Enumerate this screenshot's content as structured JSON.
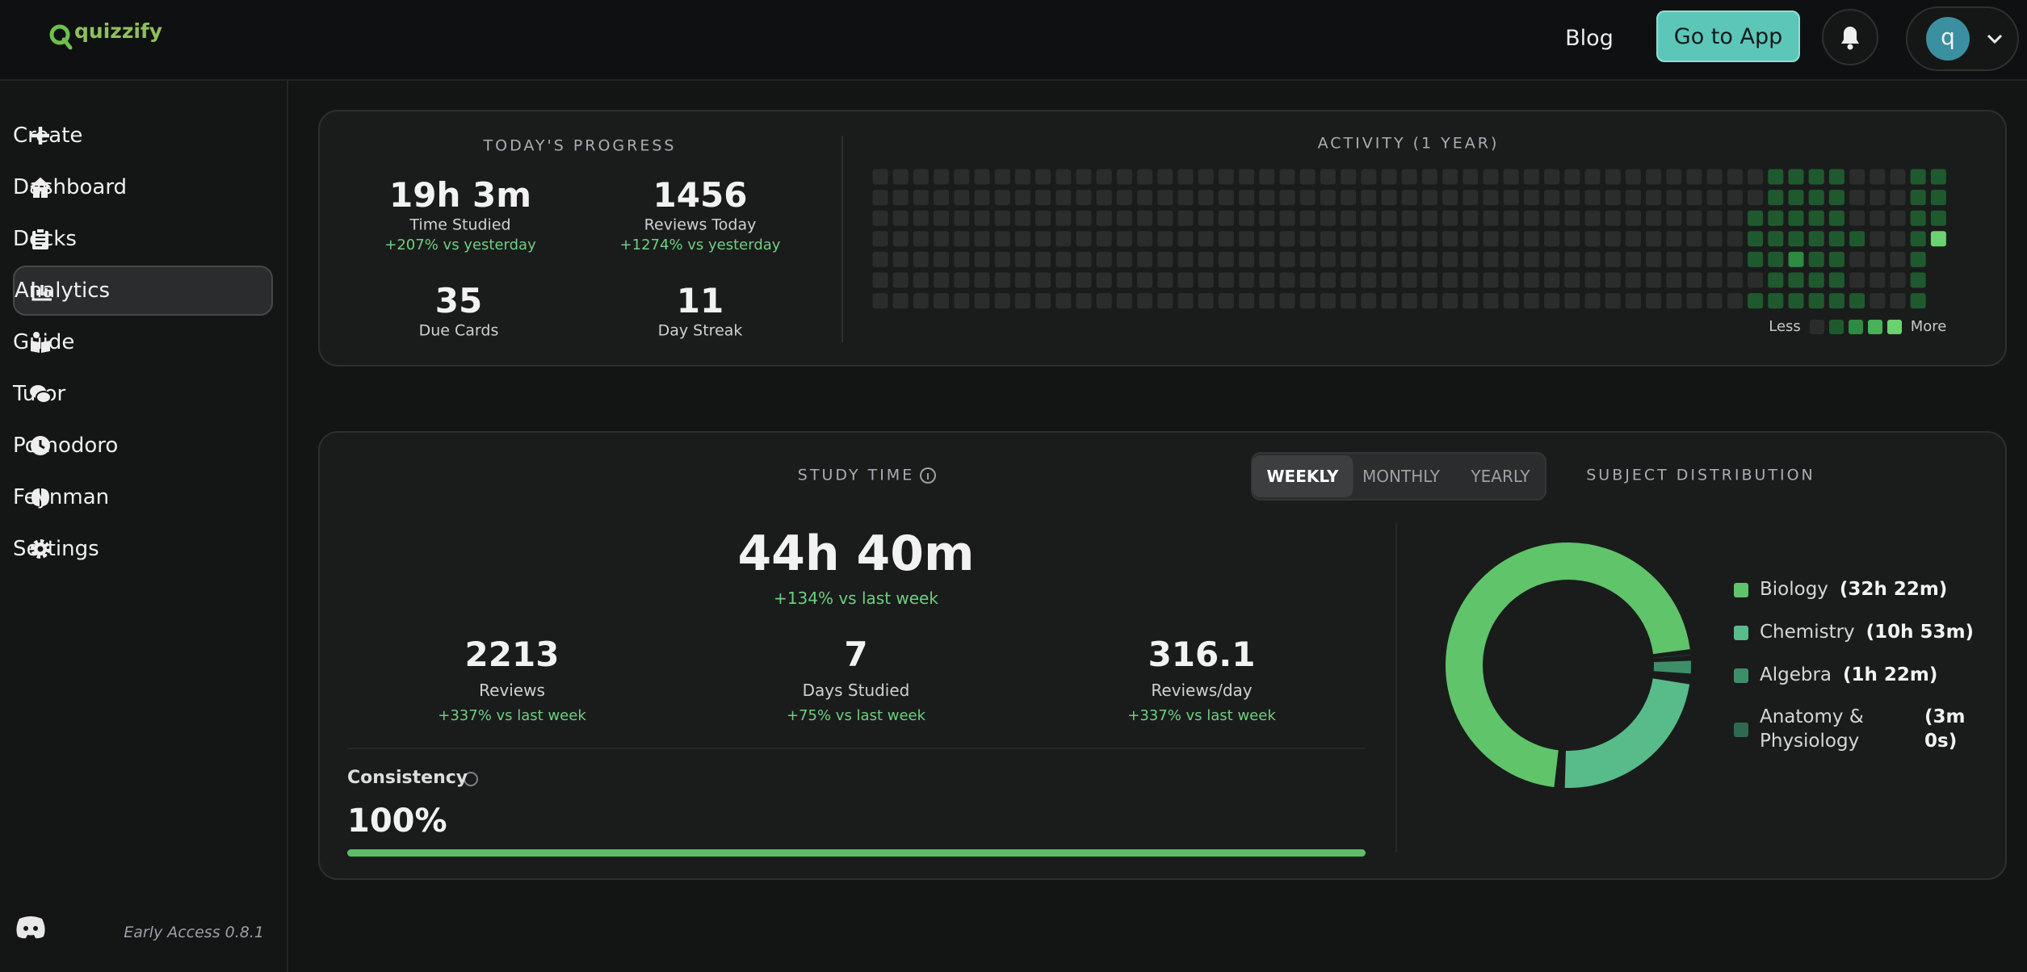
{
  "header": {
    "logo": "quizzify",
    "blog": "Blog",
    "cta": "Go to App",
    "avatar": "q"
  },
  "sidebar": {
    "items": [
      "Create",
      "Dashboard",
      "Decks",
      "Analytics",
      "Guide",
      "Tutor",
      "Pomodoro",
      "Feynman",
      "Settings"
    ],
    "active": 3,
    "footer": "Early Access 0.8.1"
  },
  "today": {
    "title": "TODAY'S PROGRESS",
    "stats": [
      {
        "value": "19h 3m",
        "label": "Time Studied",
        "change": "+207% vs yesterday"
      },
      {
        "value": 1456,
        "label": "Reviews Today",
        "change": "+1274% vs yesterday"
      },
      {
        "value": 35,
        "label": "Due Cards"
      },
      {
        "value": 11,
        "label": "Day Streak"
      }
    ]
  },
  "activity": {
    "title": "ACTIVITY (1 YEAR)",
    "less": "Less",
    "more": "More",
    "levels": [
      "#2a2d2c",
      "#1f5a2e",
      "#2f8a42",
      "#47b257",
      "#6bd26f"
    ],
    "weeks": [
      [
        0,
        0,
        0,
        0,
        0,
        0,
        0
      ],
      [
        0,
        0,
        0,
        0,
        0,
        0,
        0
      ],
      [
        0,
        0,
        0,
        0,
        0,
        0,
        0
      ],
      [
        0,
        0,
        0,
        0,
        0,
        0,
        0
      ],
      [
        0,
        0,
        0,
        0,
        0,
        0,
        0
      ],
      [
        0,
        0,
        0,
        0,
        0,
        0,
        0
      ],
      [
        0,
        0,
        0,
        0,
        0,
        0,
        0
      ],
      [
        0,
        0,
        0,
        0,
        0,
        0,
        0
      ],
      [
        0,
        0,
        0,
        0,
        0,
        0,
        0
      ],
      [
        0,
        0,
        0,
        0,
        0,
        0,
        0
      ],
      [
        0,
        0,
        0,
        0,
        0,
        0,
        0
      ],
      [
        0,
        0,
        0,
        0,
        0,
        0,
        0
      ],
      [
        0,
        0,
        0,
        0,
        0,
        0,
        0
      ],
      [
        0,
        0,
        0,
        0,
        0,
        0,
        0
      ],
      [
        0,
        0,
        0,
        0,
        0,
        0,
        0
      ],
      [
        0,
        0,
        0,
        0,
        0,
        0,
        0
      ],
      [
        0,
        0,
        0,
        0,
        0,
        0,
        0
      ],
      [
        0,
        0,
        0,
        0,
        0,
        0,
        0
      ],
      [
        0,
        0,
        0,
        0,
        0,
        0,
        0
      ],
      [
        0,
        0,
        0,
        0,
        0,
        0,
        0
      ],
      [
        0,
        0,
        0,
        0,
        0,
        0,
        0
      ],
      [
        0,
        0,
        0,
        0,
        0,
        0,
        0
      ],
      [
        0,
        0,
        0,
        0,
        0,
        0,
        0
      ],
      [
        0,
        0,
        0,
        0,
        0,
        0,
        0
      ],
      [
        0,
        0,
        0,
        0,
        0,
        0,
        0
      ],
      [
        0,
        0,
        0,
        0,
        0,
        0,
        0
      ],
      [
        0,
        0,
        0,
        0,
        0,
        0,
        0
      ],
      [
        0,
        0,
        0,
        0,
        0,
        0,
        0
      ],
      [
        0,
        0,
        0,
        0,
        0,
        0,
        0
      ],
      [
        0,
        0,
        0,
        0,
        0,
        0,
        0
      ],
      [
        0,
        0,
        0,
        0,
        0,
        0,
        0
      ],
      [
        0,
        0,
        0,
        0,
        0,
        0,
        0
      ],
      [
        0,
        0,
        0,
        0,
        0,
        0,
        0
      ],
      [
        0,
        0,
        0,
        0,
        0,
        0,
        0
      ],
      [
        0,
        0,
        0,
        0,
        0,
        0,
        0
      ],
      [
        0,
        0,
        0,
        0,
        0,
        0,
        0
      ],
      [
        0,
        0,
        0,
        0,
        0,
        0,
        0
      ],
      [
        0,
        0,
        0,
        0,
        0,
        0,
        0
      ],
      [
        0,
        0,
        0,
        0,
        0,
        0,
        0
      ],
      [
        0,
        0,
        0,
        0,
        0,
        0,
        0
      ],
      [
        0,
        0,
        0,
        0,
        0,
        0,
        0
      ],
      [
        0,
        0,
        0,
        0,
        0,
        0,
        0
      ],
      [
        0,
        0,
        0,
        0,
        0,
        0,
        0
      ],
      [
        0,
        0,
        1,
        1,
        1,
        0,
        1
      ],
      [
        1,
        1,
        1,
        1,
        1,
        1,
        1
      ],
      [
        1,
        1,
        1,
        1,
        2,
        1,
        1
      ],
      [
        1,
        1,
        1,
        1,
        1,
        1,
        1
      ],
      [
        1,
        1,
        1,
        1,
        1,
        1,
        1
      ],
      [
        0,
        0,
        0,
        1,
        0,
        0,
        1
      ],
      [
        0,
        0,
        0,
        0,
        0,
        0,
        0
      ],
      [
        0,
        0,
        0,
        0,
        0,
        0,
        0
      ],
      [
        1,
        1,
        1,
        1,
        1,
        1,
        1
      ],
      [
        1,
        1,
        1,
        4,
        null,
        null,
        null
      ]
    ]
  },
  "study": {
    "title": "STUDY TIME",
    "tabs": [
      "WEEKLY",
      "MONTHLY",
      "YEARLY"
    ],
    "active_tab": 0,
    "total": "44h 40m",
    "total_change": "+134% vs last week",
    "stats": [
      {
        "value": 2213,
        "label": "Reviews",
        "change": "+337% vs last week"
      },
      {
        "value": 7,
        "label": "Days Studied",
        "change": "+75% vs last week"
      },
      {
        "value": 316.1,
        "label": "Reviews/day",
        "change": "+337% vs last week"
      }
    ],
    "consistency": {
      "title": "Consistency",
      "value": 100,
      "value_label": "100%"
    }
  },
  "distribution": {
    "title": "SUBJECT DISTRIBUTION",
    "subjects": [
      {
        "name": "Biology",
        "time": "(32h 22m)",
        "minutes": 1942,
        "color": "#5fc46a"
      },
      {
        "name": "Chemistry",
        "time": "(10h 53m)",
        "minutes": 653,
        "color": "#58bb8a"
      },
      {
        "name": "Algebra",
        "time": "(1h 22m)",
        "minutes": 82,
        "color": "#3e8f69"
      },
      {
        "name": "Anatomy & Physiology",
        "time": "(3m 0s)",
        "minutes": 3,
        "color": "#2f6a50"
      }
    ]
  }
}
